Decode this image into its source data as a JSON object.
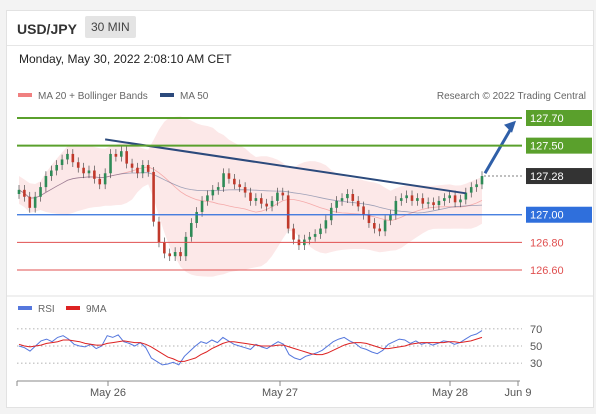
{
  "header": {
    "pair": "USD/JPY",
    "timeframe": "30 MIN"
  },
  "timestamp": "Monday, May 30, 2022 2:08:10 AM CET",
  "legend": {
    "bollinger": "MA 20 + Bollinger Bands",
    "ma50": "MA 50",
    "credit": "Research © 2022 Trading Central",
    "rsi": "RSI",
    "rsi_ma": "9MA"
  },
  "colors": {
    "bollinger": "#f08080",
    "ma50": "#2c4a7c",
    "resistance": "#5aa02c",
    "support_current": "#2f6fdc",
    "support": "#e05050",
    "last_price": "#333333",
    "rsi": "#5577dd",
    "rsi_ma": "#dd2222",
    "candle_up": "#2e8b57",
    "candle_down": "#c0392b"
  },
  "chart_data": [
    {
      "type": "candlestick",
      "x_ticks": [
        "May 26",
        "May 27",
        "May 28",
        "Jun 9"
      ],
      "ylim": [
        126.45,
        127.82
      ],
      "levels": [
        {
          "label": "127.70",
          "value": 127.7,
          "kind": "resistance"
        },
        {
          "label": "127.50",
          "value": 127.5,
          "kind": "resistance"
        },
        {
          "label": "127.28",
          "value": 127.28,
          "kind": "last"
        },
        {
          "label": "127.00",
          "value": 127.0,
          "kind": "support-current"
        },
        {
          "label": "126.80",
          "value": 126.8,
          "kind": "support"
        },
        {
          "label": "126.60",
          "value": 126.6,
          "kind": "support"
        }
      ],
      "close": [
        127.18,
        127.13,
        127.05,
        127.13,
        127.2,
        127.28,
        127.32,
        127.36,
        127.4,
        127.44,
        127.38,
        127.34,
        127.3,
        127.32,
        127.26,
        127.22,
        127.3,
        127.44,
        127.42,
        127.46,
        127.37,
        127.34,
        127.3,
        127.36,
        127.31,
        126.95,
        126.8,
        126.72,
        126.7,
        126.73,
        126.7,
        126.84,
        126.94,
        127.02,
        127.1,
        127.14,
        127.18,
        127.2,
        127.3,
        127.26,
        127.22,
        127.2,
        127.16,
        127.1,
        127.12,
        127.08,
        127.06,
        127.1,
        127.16,
        127.14,
        126.9,
        126.82,
        126.78,
        126.82,
        126.84,
        126.86,
        126.9,
        126.96,
        127.05,
        127.1,
        127.12,
        127.15,
        127.1,
        127.06,
        127.0,
        126.94,
        126.9,
        126.88,
        126.96,
        127.0,
        127.1,
        127.12,
        127.14,
        127.1,
        127.12,
        127.08,
        127.09,
        127.07,
        127.1,
        127.12,
        127.14,
        127.09,
        127.11,
        127.16,
        127.2,
        127.22,
        127.28
      ]
    },
    {
      "type": "line",
      "series": [
        {
          "name": "RSI"
        },
        {
          "name": "9MA"
        }
      ],
      "y_ticks": [
        70,
        50,
        30
      ],
      "ylim": [
        15,
        85
      ],
      "rsi": [
        50,
        48,
        44,
        50,
        56,
        58,
        55,
        60,
        62,
        58,
        52,
        50,
        49,
        52,
        47,
        50,
        62,
        60,
        63,
        55,
        53,
        50,
        54,
        48,
        36,
        32,
        28,
        29,
        31,
        28,
        38,
        44,
        50,
        55,
        53,
        57,
        54,
        60,
        56,
        52,
        50,
        48,
        46,
        52,
        49,
        47,
        51,
        55,
        52,
        40,
        36,
        34,
        38,
        40,
        42,
        45,
        50,
        55,
        58,
        60,
        56,
        53,
        48,
        46,
        43,
        41,
        45,
        52,
        55,
        58,
        57,
        53,
        56,
        52,
        54,
        51,
        53,
        56,
        55,
        52,
        54,
        58,
        62,
        64,
        68
      ],
      "rsi_ma": [
        52,
        50,
        49,
        50,
        51,
        53,
        54,
        55,
        57,
        57,
        56,
        55,
        53,
        52,
        51,
        51,
        53,
        54,
        55,
        56,
        55,
        54,
        54,
        52,
        49,
        45,
        41,
        37,
        35,
        32,
        32,
        34,
        36,
        40,
        43,
        47,
        50,
        53,
        55,
        55,
        54,
        53,
        52,
        51,
        50,
        50,
        50,
        51,
        51,
        49,
        47,
        45,
        43,
        41,
        40,
        40,
        42,
        45,
        48,
        51,
        53,
        54,
        54,
        53,
        51,
        49,
        47,
        47,
        48,
        49,
        50,
        52,
        53,
        54,
        54,
        54,
        54,
        54,
        55,
        55,
        54,
        55,
        56,
        58,
        60
      ]
    }
  ]
}
